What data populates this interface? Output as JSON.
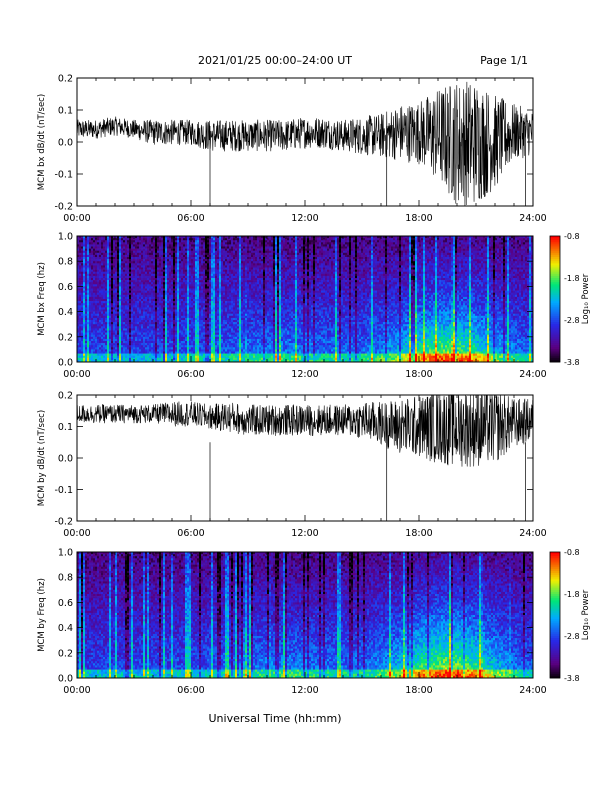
{
  "header": {
    "title": "2021/01/25  00:00–24:00 UT",
    "page": "Page 1/1"
  },
  "xlabel": "Universal Time (hh:mm)",
  "colorbar": {
    "label": "Log₁₀ Power",
    "ticks": [
      "-0.8",
      "-1.8",
      "-2.8",
      "-3.8"
    ]
  },
  "chart_data": [
    {
      "type": "line",
      "ylabel": "MCM bx dB/dt (nT/sec)",
      "x_range": [
        "00:00",
        "24:00"
      ],
      "xticks": [
        "00:00",
        "06:00",
        "12:00",
        "18:00",
        "24:00"
      ],
      "ylim": [
        -0.2,
        0.2
      ],
      "yticks": [
        "0.2",
        "0.1",
        "0.0",
        "-0.1",
        "-0.2"
      ],
      "series": [
        {
          "x_hours": [
            0,
            1,
            2,
            3,
            4,
            5,
            6,
            7,
            8,
            9,
            10,
            11,
            12,
            13,
            14,
            15,
            16,
            17,
            18,
            19,
            20,
            21,
            22,
            23,
            24
          ],
          "center": [
            0.04,
            0.04,
            0.05,
            0.04,
            0.03,
            0.03,
            0.03,
            0.02,
            0.02,
            0.02,
            0.02,
            0.02,
            0.03,
            0.03,
            0.02,
            0.02,
            0.02,
            0.03,
            0.03,
            0.02,
            0.0,
            0.0,
            0.0,
            0.03,
            0.03
          ],
          "amplitude": [
            0.03,
            0.03,
            0.03,
            0.03,
            0.04,
            0.04,
            0.04,
            0.05,
            0.05,
            0.05,
            0.05,
            0.05,
            0.05,
            0.05,
            0.05,
            0.06,
            0.07,
            0.09,
            0.1,
            0.15,
            0.2,
            0.2,
            0.15,
            0.09,
            0.07
          ]
        }
      ]
    },
    {
      "type": "heatmap",
      "ylabel": "MCM bx Freq (hz)",
      "x_range": [
        "00:00",
        "24:00"
      ],
      "xticks": [
        "00:00",
        "06:00",
        "12:00",
        "18:00",
        "24:00"
      ],
      "ylim": [
        0.0,
        1.0
      ],
      "yticks": [
        "1.0",
        "0.8",
        "0.6",
        "0.4",
        "0.2",
        "0.0"
      ],
      "zlim": [
        -3.8,
        -0.8
      ],
      "zlabel": "Log₁₀ Power"
    },
    {
      "type": "line",
      "ylabel": "MCM by dB/dt (nT/sec)",
      "x_range": [
        "00:00",
        "24:00"
      ],
      "xticks": [
        "00:00",
        "06:00",
        "12:00",
        "18:00",
        "24:00"
      ],
      "ylim": [
        -0.2,
        0.2
      ],
      "yticks": [
        "0.2",
        "0.1",
        "0.0",
        "-0.1",
        "-0.2"
      ],
      "series": [
        {
          "x_hours": [
            0,
            1,
            2,
            3,
            4,
            5,
            6,
            7,
            8,
            9,
            10,
            11,
            12,
            13,
            14,
            15,
            16,
            17,
            18,
            19,
            20,
            21,
            22,
            23,
            24
          ],
          "center": [
            0.14,
            0.14,
            0.14,
            0.14,
            0.14,
            0.14,
            0.14,
            0.13,
            0.13,
            0.12,
            0.12,
            0.12,
            0.12,
            0.12,
            0.12,
            0.12,
            0.11,
            0.1,
            0.1,
            0.1,
            0.1,
            0.1,
            0.1,
            0.11,
            0.12
          ],
          "amplitude": [
            0.03,
            0.03,
            0.03,
            0.03,
            0.03,
            0.04,
            0.04,
            0.04,
            0.05,
            0.05,
            0.05,
            0.05,
            0.05,
            0.05,
            0.05,
            0.06,
            0.07,
            0.09,
            0.1,
            0.12,
            0.13,
            0.13,
            0.12,
            0.08,
            0.07
          ]
        }
      ]
    },
    {
      "type": "heatmap",
      "ylabel": "MCM by Freq (hz)",
      "x_range": [
        "00:00",
        "24:00"
      ],
      "xticks": [
        "00:00",
        "06:00",
        "12:00",
        "18:00",
        "24:00"
      ],
      "ylim": [
        0.0,
        1.0
      ],
      "yticks": [
        "1.0",
        "0.8",
        "0.6",
        "0.4",
        "0.2",
        "0.0"
      ],
      "zlim": [
        -3.8,
        -0.8
      ],
      "zlabel": "Log₁₀ Power"
    }
  ]
}
